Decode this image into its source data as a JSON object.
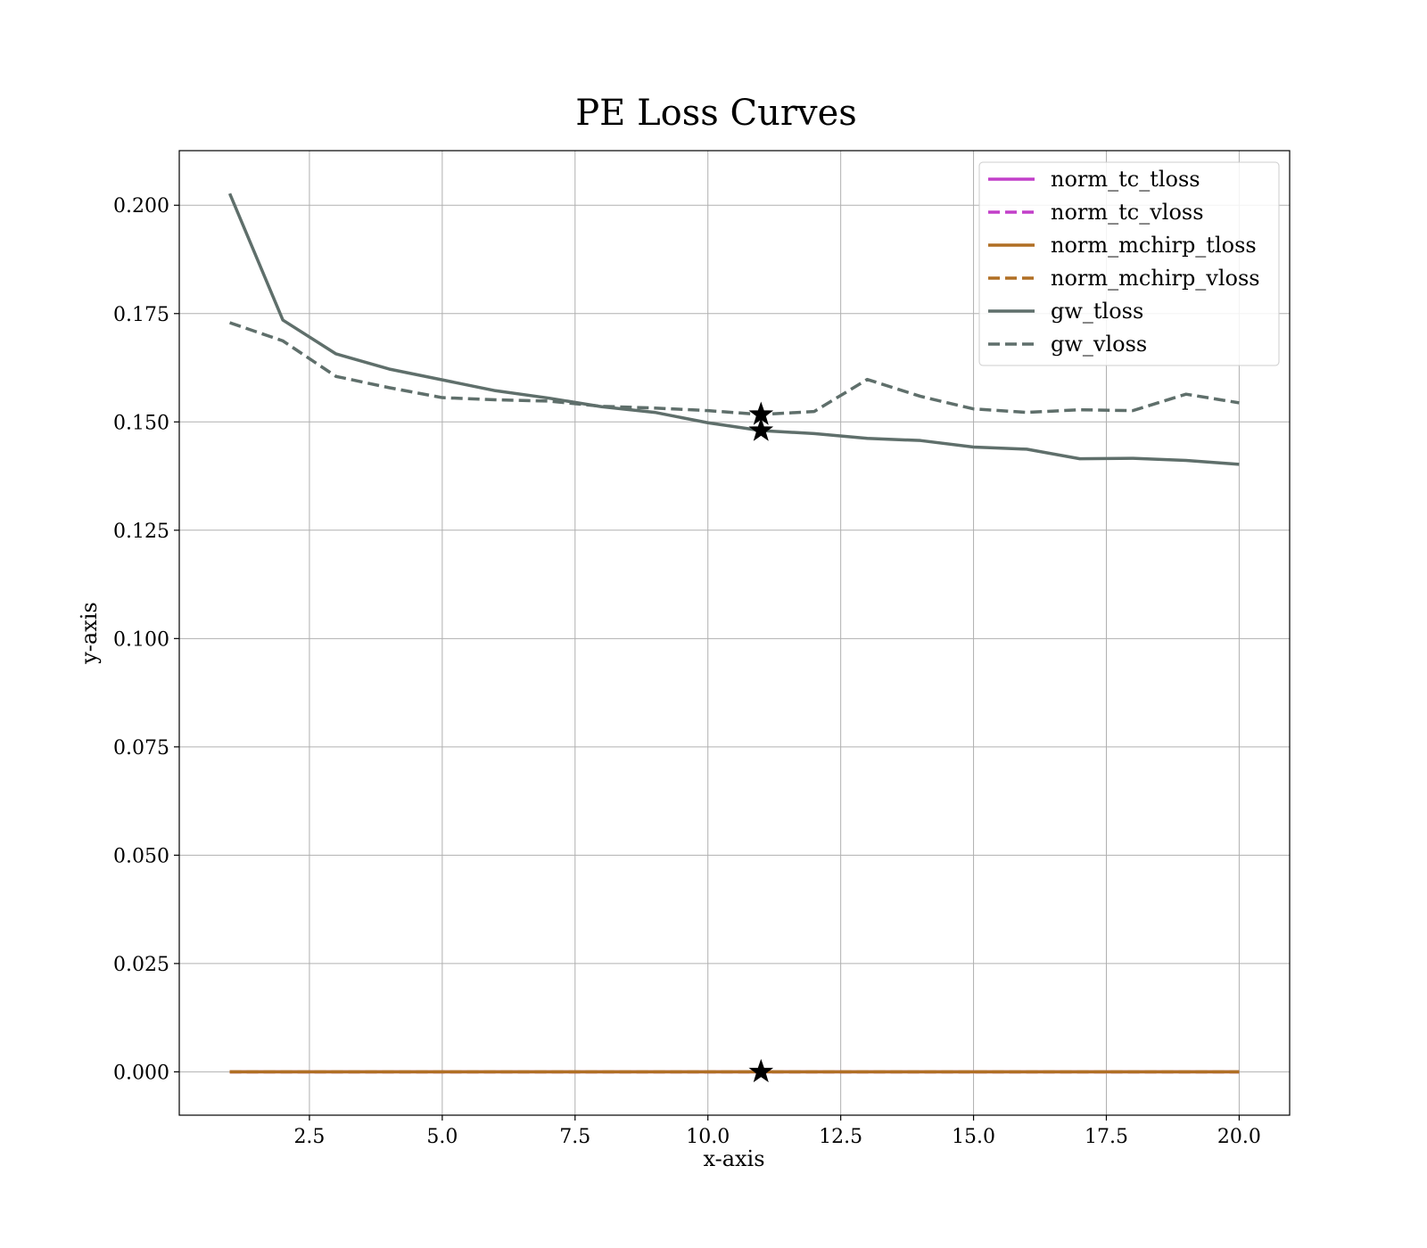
{
  "chart_data": {
    "type": "line",
    "title": "PE Loss Curves",
    "xlabel": "x-axis",
    "ylabel": "y-axis",
    "xlim": [
      0.05,
      20.95
    ],
    "ylim": [
      -0.01,
      0.2126
    ],
    "xticks": [
      2.5,
      5.0,
      7.5,
      10.0,
      12.5,
      15.0,
      17.5,
      20.0
    ],
    "xtick_labels": [
      "2.5",
      "5.0",
      "7.5",
      "10.0",
      "12.5",
      "15.0",
      "17.5",
      "20.0"
    ],
    "yticks": [
      0.0,
      0.025,
      0.05,
      0.075,
      0.1,
      0.125,
      0.15,
      0.175,
      0.2
    ],
    "ytick_labels": [
      "0.000",
      "0.025",
      "0.050",
      "0.075",
      "0.100",
      "0.125",
      "0.150",
      "0.175",
      "0.200"
    ],
    "grid": true,
    "legend_position": "top-right",
    "x": [
      1,
      2,
      3,
      4,
      5,
      6,
      7,
      8,
      9,
      10,
      11,
      12,
      13,
      14,
      15,
      16,
      17,
      18,
      19,
      20
    ],
    "series": [
      {
        "name": "norm_tc_tloss",
        "color": "#c23fc9",
        "dash": "solid",
        "values": [
          0,
          0,
          0,
          0,
          0,
          0,
          0,
          0,
          0,
          0,
          0,
          0,
          0,
          0,
          0,
          0,
          0,
          0,
          0,
          0
        ]
      },
      {
        "name": "norm_tc_vloss",
        "color": "#c23fc9",
        "dash": "dashed",
        "values": [
          0,
          0,
          0,
          0,
          0,
          0,
          0,
          0,
          0,
          0,
          0,
          0,
          0,
          0,
          0,
          0,
          0,
          0,
          0,
          0
        ]
      },
      {
        "name": "norm_mchirp_tloss",
        "color": "#b06f24",
        "dash": "solid",
        "values": [
          0,
          0,
          0,
          0,
          0,
          0,
          0,
          0,
          0,
          0,
          0,
          0,
          0,
          0,
          0,
          0,
          0,
          0,
          0,
          0
        ]
      },
      {
        "name": "norm_mchirp_vloss",
        "color": "#b06f24",
        "dash": "dashed",
        "values": [
          0,
          0,
          0,
          0,
          0,
          0,
          0,
          0,
          0,
          0,
          0,
          0,
          0,
          0,
          0,
          0,
          0,
          0,
          0,
          0
        ]
      },
      {
        "name": "gw_tloss",
        "color": "#5f6f6b",
        "dash": "solid",
        "values": [
          0.2027,
          0.1735,
          0.1657,
          0.1622,
          0.1597,
          0.1572,
          0.1555,
          0.1535,
          0.1522,
          0.1498,
          0.148,
          0.1473,
          0.1462,
          0.1457,
          0.1442,
          0.1437,
          0.1415,
          0.1416,
          0.1411,
          0.1402
        ]
      },
      {
        "name": "gw_vloss",
        "color": "#5f6f6b",
        "dash": "dashed",
        "values": [
          0.1729,
          0.1687,
          0.1605,
          0.1579,
          0.1556,
          0.1551,
          0.1548,
          0.1536,
          0.1532,
          0.1526,
          0.1517,
          0.1524,
          0.1598,
          0.1559,
          0.153,
          0.1522,
          0.1528,
          0.1526,
          0.1564,
          0.1544
        ]
      }
    ],
    "markers": [
      {
        "x": 11,
        "y": 0.1517,
        "symbol": "star"
      },
      {
        "x": 11,
        "y": 0.148,
        "symbol": "star"
      },
      {
        "x": 11,
        "y": 0.0,
        "symbol": "star"
      }
    ]
  }
}
